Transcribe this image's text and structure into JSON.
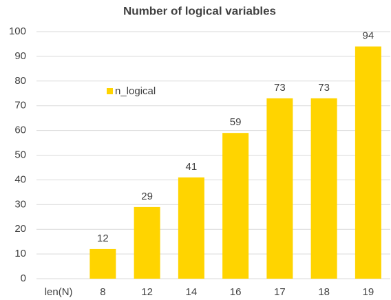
{
  "chart_data": {
    "type": "bar",
    "title": "Number of logical variables",
    "categories": [
      "len(N)",
      "8",
      "12",
      "14",
      "16",
      "17",
      "18",
      "19"
    ],
    "series": [
      {
        "name": "n_logical",
        "color": "#ffd400",
        "values": [
          null,
          12,
          29,
          41,
          59,
          73,
          73,
          94
        ]
      }
    ],
    "ylim": [
      0,
      100
    ],
    "yticks": [
      0,
      10,
      20,
      30,
      40,
      50,
      60,
      70,
      80,
      90,
      100
    ],
    "grid": true,
    "legend": "upper left"
  }
}
